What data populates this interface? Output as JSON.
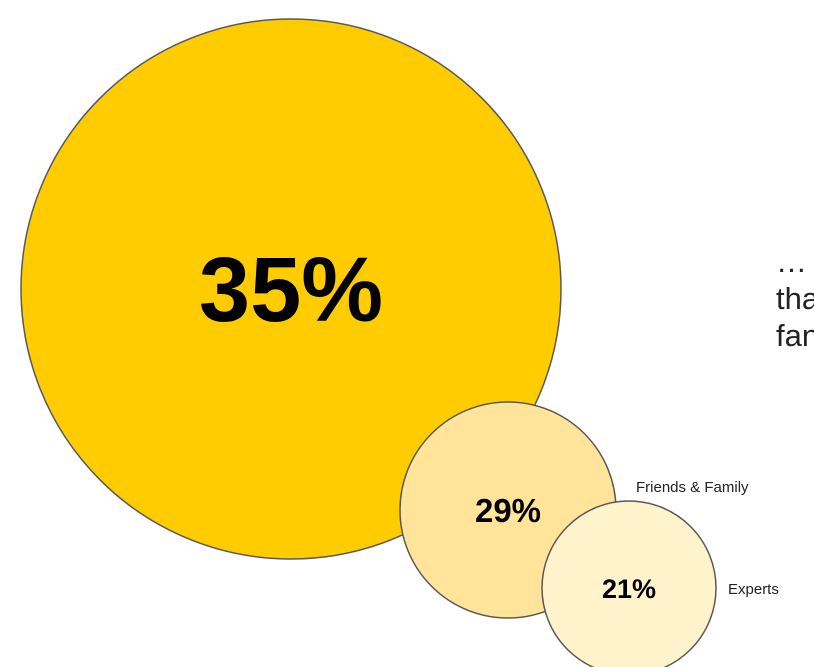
{
  "chart_data": {
    "type": "bubble",
    "title": "",
    "series": [
      {
        "name": "",
        "value": 35,
        "label": "35%",
        "color": "#FFCC00"
      },
      {
        "name": "Friends & Family",
        "value": 29,
        "label": "29%",
        "color": "#FFE49A"
      },
      {
        "name": "Experts",
        "value": 21,
        "label": "21%",
        "color": "#FFF3CC"
      }
    ],
    "stroke_color": "#595959"
  },
  "text_block": {
    "line1": "…",
    "line2": "tha",
    "line3": "fan"
  }
}
